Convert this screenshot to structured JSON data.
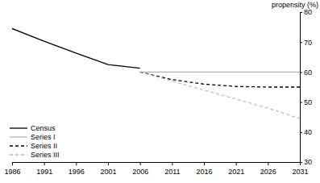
{
  "chart_data": {
    "type": "line",
    "y_label": "propensity (%)",
    "x": [
      1986,
      1991,
      1996,
      2001,
      2006,
      2011,
      2016,
      2021,
      2026,
      2031
    ],
    "series": [
      {
        "name": "Census",
        "color": "#000000",
        "line_style": "solid",
        "values": [
          74.5,
          70.3,
          66.3,
          62.5,
          61.3,
          null,
          null,
          null,
          null,
          null
        ]
      },
      {
        "name": "Series I",
        "color": "#b3b3b3",
        "line_style": "solid",
        "values": [
          null,
          null,
          null,
          null,
          60,
          60,
          60,
          60,
          60,
          60
        ]
      },
      {
        "name": "Series II",
        "color": "#000000",
        "line_style": "dashed",
        "values": [
          null,
          null,
          null,
          null,
          60,
          57.5,
          56,
          55.2,
          55,
          55
        ]
      },
      {
        "name": "Series III",
        "color": "#bdbdbd",
        "line_style": "dashed",
        "values": [
          null,
          null,
          null,
          null,
          60,
          57,
          54,
          51,
          48,
          44.5
        ]
      }
    ],
    "xlim": [
      1986,
      2031
    ],
    "xticks": [
      1986,
      1991,
      1996,
      2001,
      2006,
      2011,
      2016,
      2021,
      2026,
      2031
    ],
    "ylim": [
      30,
      80
    ],
    "yticks": [
      30,
      40,
      50,
      60,
      70,
      80
    ],
    "grid": false,
    "legend": "lower left"
  }
}
